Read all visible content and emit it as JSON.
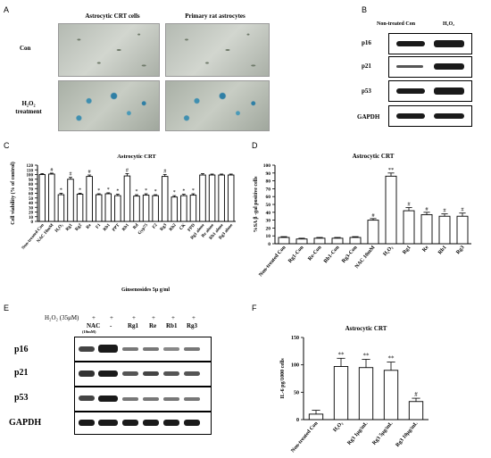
{
  "panels": {
    "a": "A",
    "b": "B",
    "c": "C",
    "d": "D",
    "e": "E",
    "f": "F"
  },
  "panel_a": {
    "col1": "Astrocytic CRT cells",
    "col2": "Primary rat astrocytes",
    "row1": "Con",
    "row2_line1": "H₂O₂",
    "row2_line2": "treatment"
  },
  "panel_b": {
    "col1": "Non-treated Con",
    "col2": "H₂O₂",
    "rows": [
      "p16",
      "p21",
      "p53",
      "GAPDH"
    ]
  },
  "panel_e": {
    "treatment_label": "H₂O₂ (35μM)",
    "plus": [
      "+",
      "+",
      "+",
      "+",
      "+",
      "+"
    ],
    "minus": "-",
    "cols": [
      "NAC",
      "-",
      "Rg1",
      "Re",
      "Rb1",
      "Rg3"
    ],
    "nac_sub": "(10mM)",
    "rows": [
      "p16",
      "p21",
      "p53",
      "GAPDH"
    ]
  },
  "chart_data": [
    {
      "id": "C",
      "type": "bar",
      "title": "Astrocytic CRT",
      "ylabel": "Cell viability (% of control)",
      "xlabel": "Ginsenosides 5μ g/ml",
      "ylim": [
        0,
        120
      ],
      "yticks": [
        0,
        10,
        20,
        30,
        40,
        50,
        60,
        70,
        80,
        90,
        100,
        110,
        120
      ],
      "categories": [
        "Non-treated Con",
        "NAC 10mM",
        "H₂O₂",
        "Rg1",
        "Rg2",
        "Re",
        "F1",
        "Rb1",
        "PPT",
        "Rb1",
        "Rd",
        "Gyp75",
        "F2",
        "Rg3",
        "Rh2",
        "CK",
        "PPD",
        "Rg1 alone",
        "Re alone",
        "Rb1 alone",
        "Rg3 alone"
      ],
      "values": [
        100,
        101,
        57,
        90,
        58,
        96,
        57,
        59,
        55,
        97,
        54,
        56,
        55,
        96,
        52,
        55,
        56,
        99,
        99,
        99,
        99
      ],
      "errors": [
        2,
        2,
        3,
        4,
        2,
        3,
        2,
        2,
        3,
        5,
        3,
        3,
        2,
        4,
        3,
        3,
        3,
        3,
        2,
        2,
        2
      ],
      "marks": [
        "",
        "#",
        "*",
        "#",
        "*",
        "#",
        "*",
        "*",
        "*",
        "#",
        "*",
        "*",
        "*",
        "#",
        "*",
        "*",
        "*",
        "",
        "",
        "",
        ""
      ]
    },
    {
      "id": "D",
      "type": "bar",
      "title": "Astrocytic CRT",
      "ylabel": "%SA β -gal positive cells",
      "ylim": [
        0,
        100
      ],
      "yticks": [
        0,
        10,
        20,
        30,
        40,
        50,
        60,
        70,
        80,
        90,
        100
      ],
      "categories": [
        "Non-treated Con",
        "Rg1-Con",
        "Re-Con",
        "Rb1-Con",
        "Rg3-Con",
        "NAC 10mM",
        "H₂O₂",
        "Rg1",
        "Re",
        "Rb1",
        "Rg3"
      ],
      "values": [
        8,
        6,
        7,
        7,
        8,
        30,
        86,
        42,
        37,
        35,
        35
      ],
      "errors": [
        1,
        1,
        1,
        1,
        1,
        2,
        4,
        4,
        3,
        3,
        4
      ],
      "marks": [
        "",
        "",
        "",
        "",
        "",
        "#",
        "**",
        "#",
        "#",
        "#",
        "#"
      ]
    },
    {
      "id": "F",
      "type": "bar",
      "title": "Astrocytic CRT",
      "ylabel": "IL-6 pg/1000 cells",
      "ylim": [
        0,
        150
      ],
      "yticks": [
        0,
        50,
        100,
        150
      ],
      "categories": [
        "Non-treated Con",
        "H₂O₂",
        "Rg3 1μg/mL",
        "Rg3 5μg/mL",
        "Rg3 10μg/mL"
      ],
      "values": [
        10,
        97,
        95,
        90,
        33
      ],
      "errors": [
        7,
        15,
        15,
        15,
        6
      ],
      "marks": [
        "",
        "**",
        "**",
        "**",
        "#"
      ]
    }
  ]
}
